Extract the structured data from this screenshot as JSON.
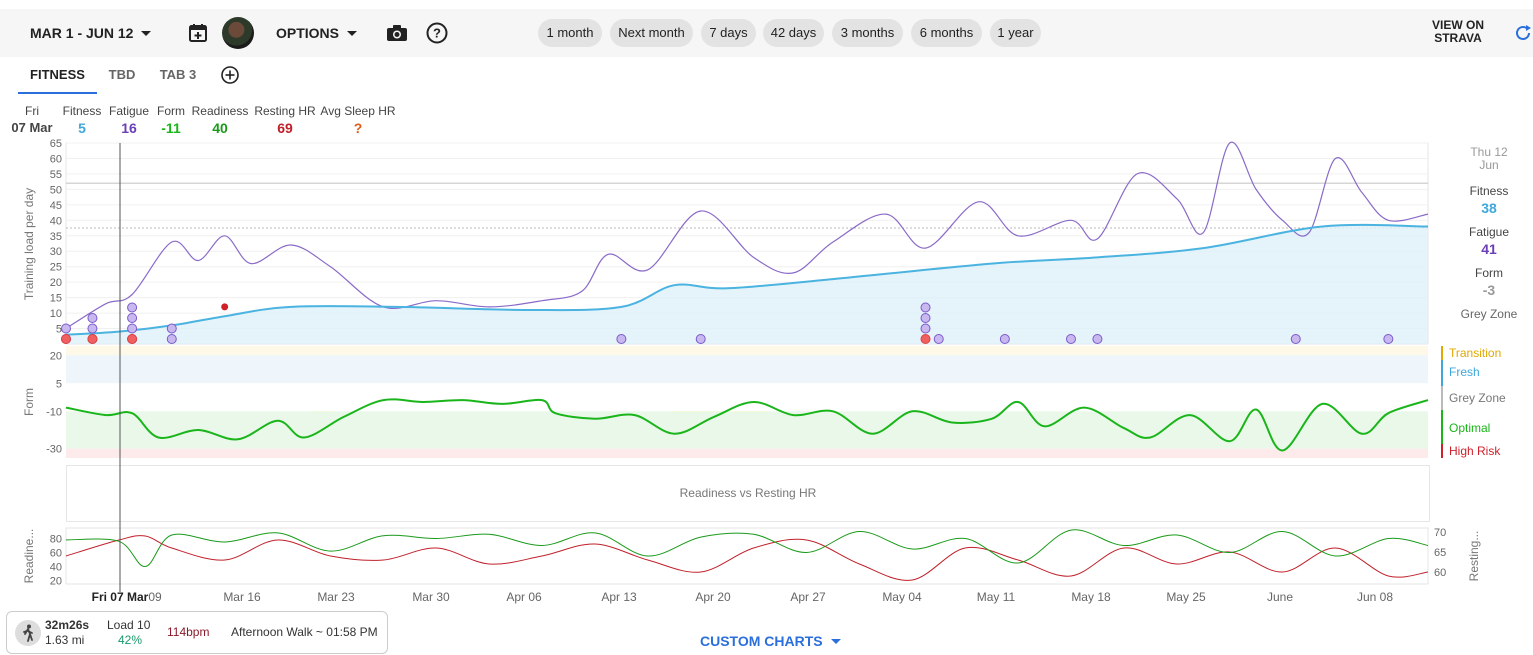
{
  "toolbar": {
    "date_range": "MAR 1 - JUN 12",
    "options": "OPTIONS",
    "chips": [
      "1 month",
      "Next month",
      "7 days",
      "42 days",
      "3 months",
      "6 months",
      "1 year"
    ],
    "view_on_line1": "VIEW ON",
    "view_on_line2": "STRAVA",
    "icons": [
      "calendar-plus-icon",
      "avatar",
      "camera-icon",
      "help-icon",
      "refresh-icon"
    ]
  },
  "tabs": [
    "FITNESS",
    "TBD",
    "TAB 3"
  ],
  "summary": {
    "day": "Fri",
    "date": "07 Mar",
    "items": [
      {
        "label": "Fitness",
        "value": "5",
        "color": "#3ea8dc"
      },
      {
        "label": "Fatigue",
        "value": "16",
        "color": "#6a3fb5"
      },
      {
        "label": "Form",
        "value": "-11",
        "color": "#1ab51a"
      },
      {
        "label": "Readiness",
        "value": "40",
        "color": "#1a9a1a"
      },
      {
        "label": "Resting HR",
        "value": "69",
        "color": "#c0202a"
      },
      {
        "label": "Avg Sleep HR",
        "value": "?",
        "color": "#e05a1a"
      }
    ]
  },
  "right_panel": {
    "day": "Thu 12",
    "month": "Jun",
    "items": [
      {
        "label": "Fitness",
        "value": "38",
        "color": "#3ea8dc"
      },
      {
        "label": "Fatigue",
        "value": "41",
        "color": "#6a3fb5"
      },
      {
        "label": "Form",
        "value": "-3",
        "color": "#999999"
      }
    ],
    "zone": "Grey Zone"
  },
  "form_zones": [
    {
      "name": "Transition",
      "color": "#e0a800"
    },
    {
      "name": "Fresh",
      "color": "#3ea8dc"
    },
    {
      "name": "Grey Zone",
      "color": "#777777"
    },
    {
      "name": "Optimal",
      "color": "#1ab51a"
    },
    {
      "name": "High Risk",
      "color": "#d0202a"
    }
  ],
  "readiness_panel_label": "Readiness vs Resting HR",
  "activity": {
    "duration": "32m26s",
    "distance": "1.63 mi",
    "load_label": "Load 10",
    "percent": "42%",
    "hr": "114bpm",
    "name": "Afternoon Walk ~ 01:58 PM",
    "icon": "walk-icon"
  },
  "custom_charts": "CUSTOM CHARTS",
  "chart_data": [
    {
      "type": "line",
      "name": "training-load",
      "ylabel": "Training load per day",
      "y_ticks": [
        5,
        10,
        15,
        20,
        25,
        30,
        35,
        40,
        45,
        50,
        55,
        60,
        65
      ],
      "ylim": [
        0,
        65
      ],
      "reference_lines": [
        52,
        37.5
      ],
      "x_ticks": [
        "Fri 07 Mar",
        "09",
        "Mar 16",
        "Mar 23",
        "Mar 30",
        "Apr 06",
        "Apr 13",
        "Apr 20",
        "Apr 27",
        "May 04",
        "May 11",
        "May 18",
        "May 25",
        "June",
        "Jun 08"
      ],
      "x_domain_days": [
        0,
        103
      ],
      "series": [
        {
          "name": "Fitness",
          "color": "#4ab3e0",
          "x": [
            0,
            4,
            8,
            12,
            17,
            25,
            35,
            42,
            46,
            50,
            58,
            70,
            78,
            86,
            95,
            103
          ],
          "values": [
            3,
            4,
            6,
            9,
            12,
            12,
            11,
            12,
            19,
            18,
            21,
            26,
            28,
            31,
            38,
            38
          ]
        },
        {
          "name": "Fatigue",
          "color": "#8a6ac8",
          "x": [
            0,
            3,
            5,
            8,
            10,
            12,
            14,
            17,
            20,
            24,
            28,
            32,
            36,
            39,
            41,
            44,
            48,
            52,
            55,
            58,
            62,
            65,
            69,
            72,
            76,
            78,
            81,
            84,
            86,
            88,
            90,
            92,
            94,
            96,
            98,
            100,
            103
          ],
          "values": [
            5,
            13,
            16,
            33,
            27,
            35,
            26,
            32,
            25,
            12,
            14,
            12,
            14,
            17,
            29,
            24,
            43,
            28,
            23,
            33,
            42,
            31,
            46,
            35,
            40,
            34,
            55,
            47,
            36,
            65,
            50,
            40,
            36,
            60,
            49,
            40,
            42
          ]
        }
      ],
      "markers_days": [
        0,
        2,
        5,
        8,
        42,
        48,
        66,
        71,
        76,
        78,
        93,
        100
      ],
      "risk_markers_days": [
        0,
        2,
        5,
        65
      ]
    },
    {
      "type": "line",
      "name": "form",
      "ylabel": "Form",
      "y_ticks": [
        20,
        5,
        -10,
        -30
      ],
      "ylim": [
        -35,
        25
      ],
      "zones": [
        {
          "name": "Transition",
          "from": 20,
          "to": 25
        },
        {
          "name": "Fresh",
          "from": 5,
          "to": 20
        },
        {
          "name": "Grey Zone",
          "from": -10,
          "to": 5
        },
        {
          "name": "Optimal",
          "from": -30,
          "to": -10
        },
        {
          "name": "High Risk",
          "from": -35,
          "to": -30
        }
      ],
      "series": [
        {
          "name": "Form",
          "color": "#1ab51a",
          "x": [
            0,
            3,
            5,
            7,
            10,
            13,
            16,
            18,
            21,
            24,
            27,
            30,
            33,
            36,
            37,
            40,
            43,
            46,
            49,
            52,
            55,
            58,
            61,
            64,
            67,
            70,
            72,
            74,
            77,
            80,
            82,
            85,
            88,
            90,
            92,
            95,
            98,
            100,
            103
          ],
          "values": [
            -8,
            -12,
            -11,
            -24,
            -20,
            -25,
            -15,
            -24,
            -13,
            -4,
            -5,
            -4,
            -6,
            -4,
            -11,
            -14,
            -12,
            -22,
            -13,
            -5,
            -12,
            -10,
            -22,
            -10,
            -16,
            -14,
            -5,
            -18,
            -8,
            -19,
            -24,
            -12,
            -26,
            -9,
            -31,
            -6,
            -22,
            -11,
            -4
          ]
        }
      ]
    },
    {
      "type": "line",
      "name": "readiness-vs-resting-hr",
      "ylabel": "Readine...",
      "y2label": "Resting...",
      "y_ticks": [
        20,
        40,
        60,
        80
      ],
      "y2_ticks": [
        60,
        65,
        70
      ],
      "series": [
        {
          "name": "Readiness",
          "color": "#1a9a1a",
          "x": [
            0,
            4,
            6,
            8,
            12,
            16,
            20,
            24,
            28,
            32,
            36,
            40,
            44,
            48,
            52,
            56,
            60,
            64,
            68,
            72,
            76,
            80,
            84,
            88,
            92,
            96,
            100,
            103
          ],
          "values": [
            78,
            76,
            40,
            85,
            75,
            88,
            62,
            84,
            80,
            86,
            70,
            88,
            55,
            82,
            86,
            60,
            90,
            65,
            80,
            45,
            92,
            70,
            85,
            60,
            90,
            55,
            80,
            70
          ]
        },
        {
          "name": "Resting HR",
          "color": "#c0202a",
          "x": [
            0,
            4,
            6,
            8,
            12,
            16,
            20,
            24,
            28,
            32,
            36,
            40,
            44,
            48,
            52,
            56,
            60,
            64,
            68,
            72,
            76,
            80,
            84,
            88,
            92,
            96,
            100,
            103
          ],
          "values": [
            64,
            68,
            69,
            66,
            63,
            68,
            64,
            63,
            66,
            62,
            64,
            67,
            63,
            60,
            66,
            68,
            62,
            58,
            66,
            63,
            59,
            66,
            62,
            65,
            60,
            66,
            59,
            60
          ]
        }
      ]
    }
  ]
}
